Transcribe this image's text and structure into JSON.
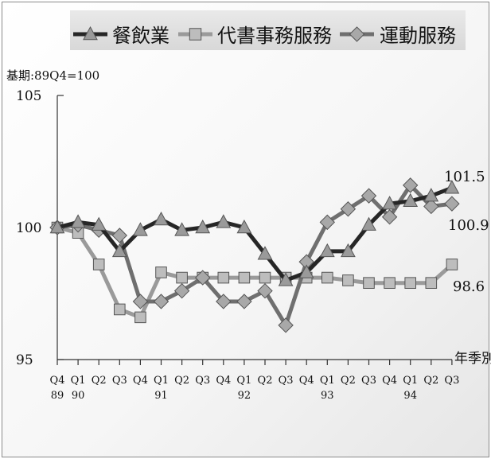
{
  "chart_data": {
    "type": "line",
    "subtitle": "基期:89Q4=100",
    "xlabel": "年季別",
    "ylim": [
      95,
      105
    ],
    "yticks": [
      95,
      100,
      105
    ],
    "categories": [
      "Q4 89",
      "Q1 90",
      "Q2",
      "Q3",
      "Q4",
      "Q1 91",
      "Q2",
      "Q3",
      "Q4",
      "Q1 92",
      "Q2",
      "Q3",
      "Q4",
      "Q1 93",
      "Q2",
      "Q3",
      "Q4",
      "Q1 94",
      "Q2",
      "Q3"
    ],
    "x_quarters": [
      "Q4",
      "Q1",
      "Q2",
      "Q3",
      "Q4",
      "Q1",
      "Q2",
      "Q3",
      "Q4",
      "Q1",
      "Q2",
      "Q3",
      "Q4",
      "Q1",
      "Q2",
      "Q3",
      "Q4",
      "Q1",
      "Q2",
      "Q3"
    ],
    "x_years": [
      "89",
      "90",
      "",
      "",
      "",
      "91",
      "",
      "",
      "",
      "92",
      "",
      "",
      "",
      "93",
      "",
      "",
      "",
      "94",
      "",
      ""
    ],
    "legend_position": "top",
    "grid": false,
    "series": [
      {
        "name": "餐飲業",
        "marker": "triangle",
        "line_color": "#262626",
        "marker_color": "#9a9a9a",
        "values": [
          100,
          100.2,
          100.1,
          99.1,
          99.9,
          100.3,
          99.9,
          100,
          100.2,
          100,
          99,
          98,
          98.3,
          99.1,
          99.1,
          100.1,
          100.9,
          101,
          101.2,
          101.5
        ],
        "end_label": "101.5"
      },
      {
        "name": "代書事務服務",
        "marker": "square",
        "line_color": "#9a9a9a",
        "marker_color": "#bdbdbd",
        "values": [
          100,
          99.8,
          98.6,
          96.9,
          96.6,
          98.3,
          98.1,
          98.1,
          98.1,
          98.1,
          98.1,
          98.1,
          98.1,
          98.1,
          98.0,
          97.9,
          97.9,
          97.9,
          97.9,
          98.6
        ],
        "end_label": "98.6"
      },
      {
        "name": "運動服務",
        "marker": "diamond",
        "line_color": "#6f6f6f",
        "marker_color": "#a8a8a8",
        "values": [
          100,
          100.1,
          99.9,
          99.7,
          97.2,
          97.2,
          97.6,
          98.1,
          97.2,
          97.2,
          97.6,
          96.3,
          98.7,
          100.2,
          100.7,
          101.2,
          100.4,
          101.6,
          100.8,
          100.9
        ],
        "end_label": "100.9"
      }
    ]
  }
}
